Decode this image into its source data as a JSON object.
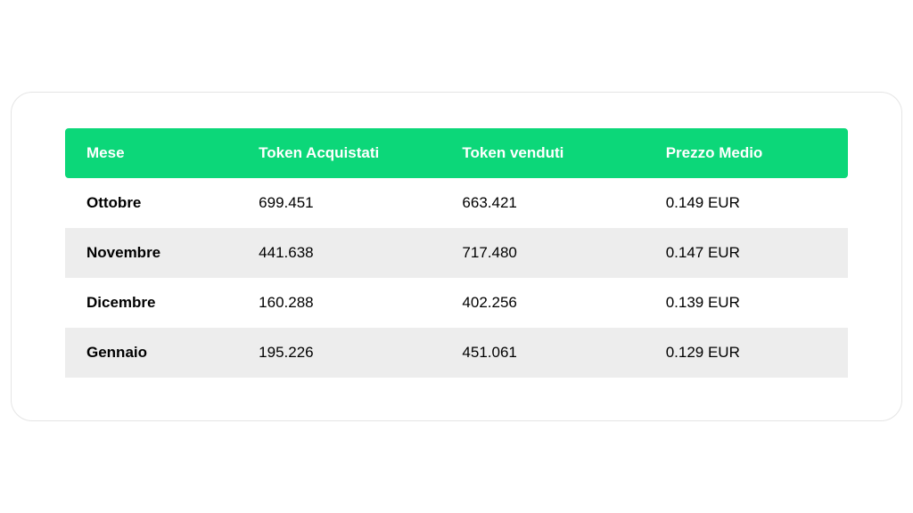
{
  "table": {
    "header_bg": "#0cd779",
    "header_fg": "#ffffff",
    "row_odd_bg": "#ffffff",
    "row_even_bg": "#ededed",
    "columns": [
      {
        "key": "mese",
        "label": "Mese",
        "width": "22%"
      },
      {
        "key": "acquistati",
        "label": "Token Acquistati",
        "width": "26%"
      },
      {
        "key": "venduti",
        "label": "Token venduti",
        "width": "26%"
      },
      {
        "key": "prezzo",
        "label": "Prezzo Medio",
        "width": "26%"
      }
    ],
    "rows": [
      {
        "mese": "Ottobre",
        "acquistati": "699.451",
        "venduti": "663.421",
        "prezzo": "0.149 EUR"
      },
      {
        "mese": "Novembre",
        "acquistati": "441.638",
        "venduti": "717.480",
        "prezzo": "0.147 EUR"
      },
      {
        "mese": "Dicembre",
        "acquistati": "160.288",
        "venduti": "402.256",
        "prezzo": "0.139 EUR"
      },
      {
        "mese": "Gennaio",
        "acquistati": "195.226",
        "venduti": "451.061",
        "prezzo": "0.129 EUR"
      }
    ]
  }
}
